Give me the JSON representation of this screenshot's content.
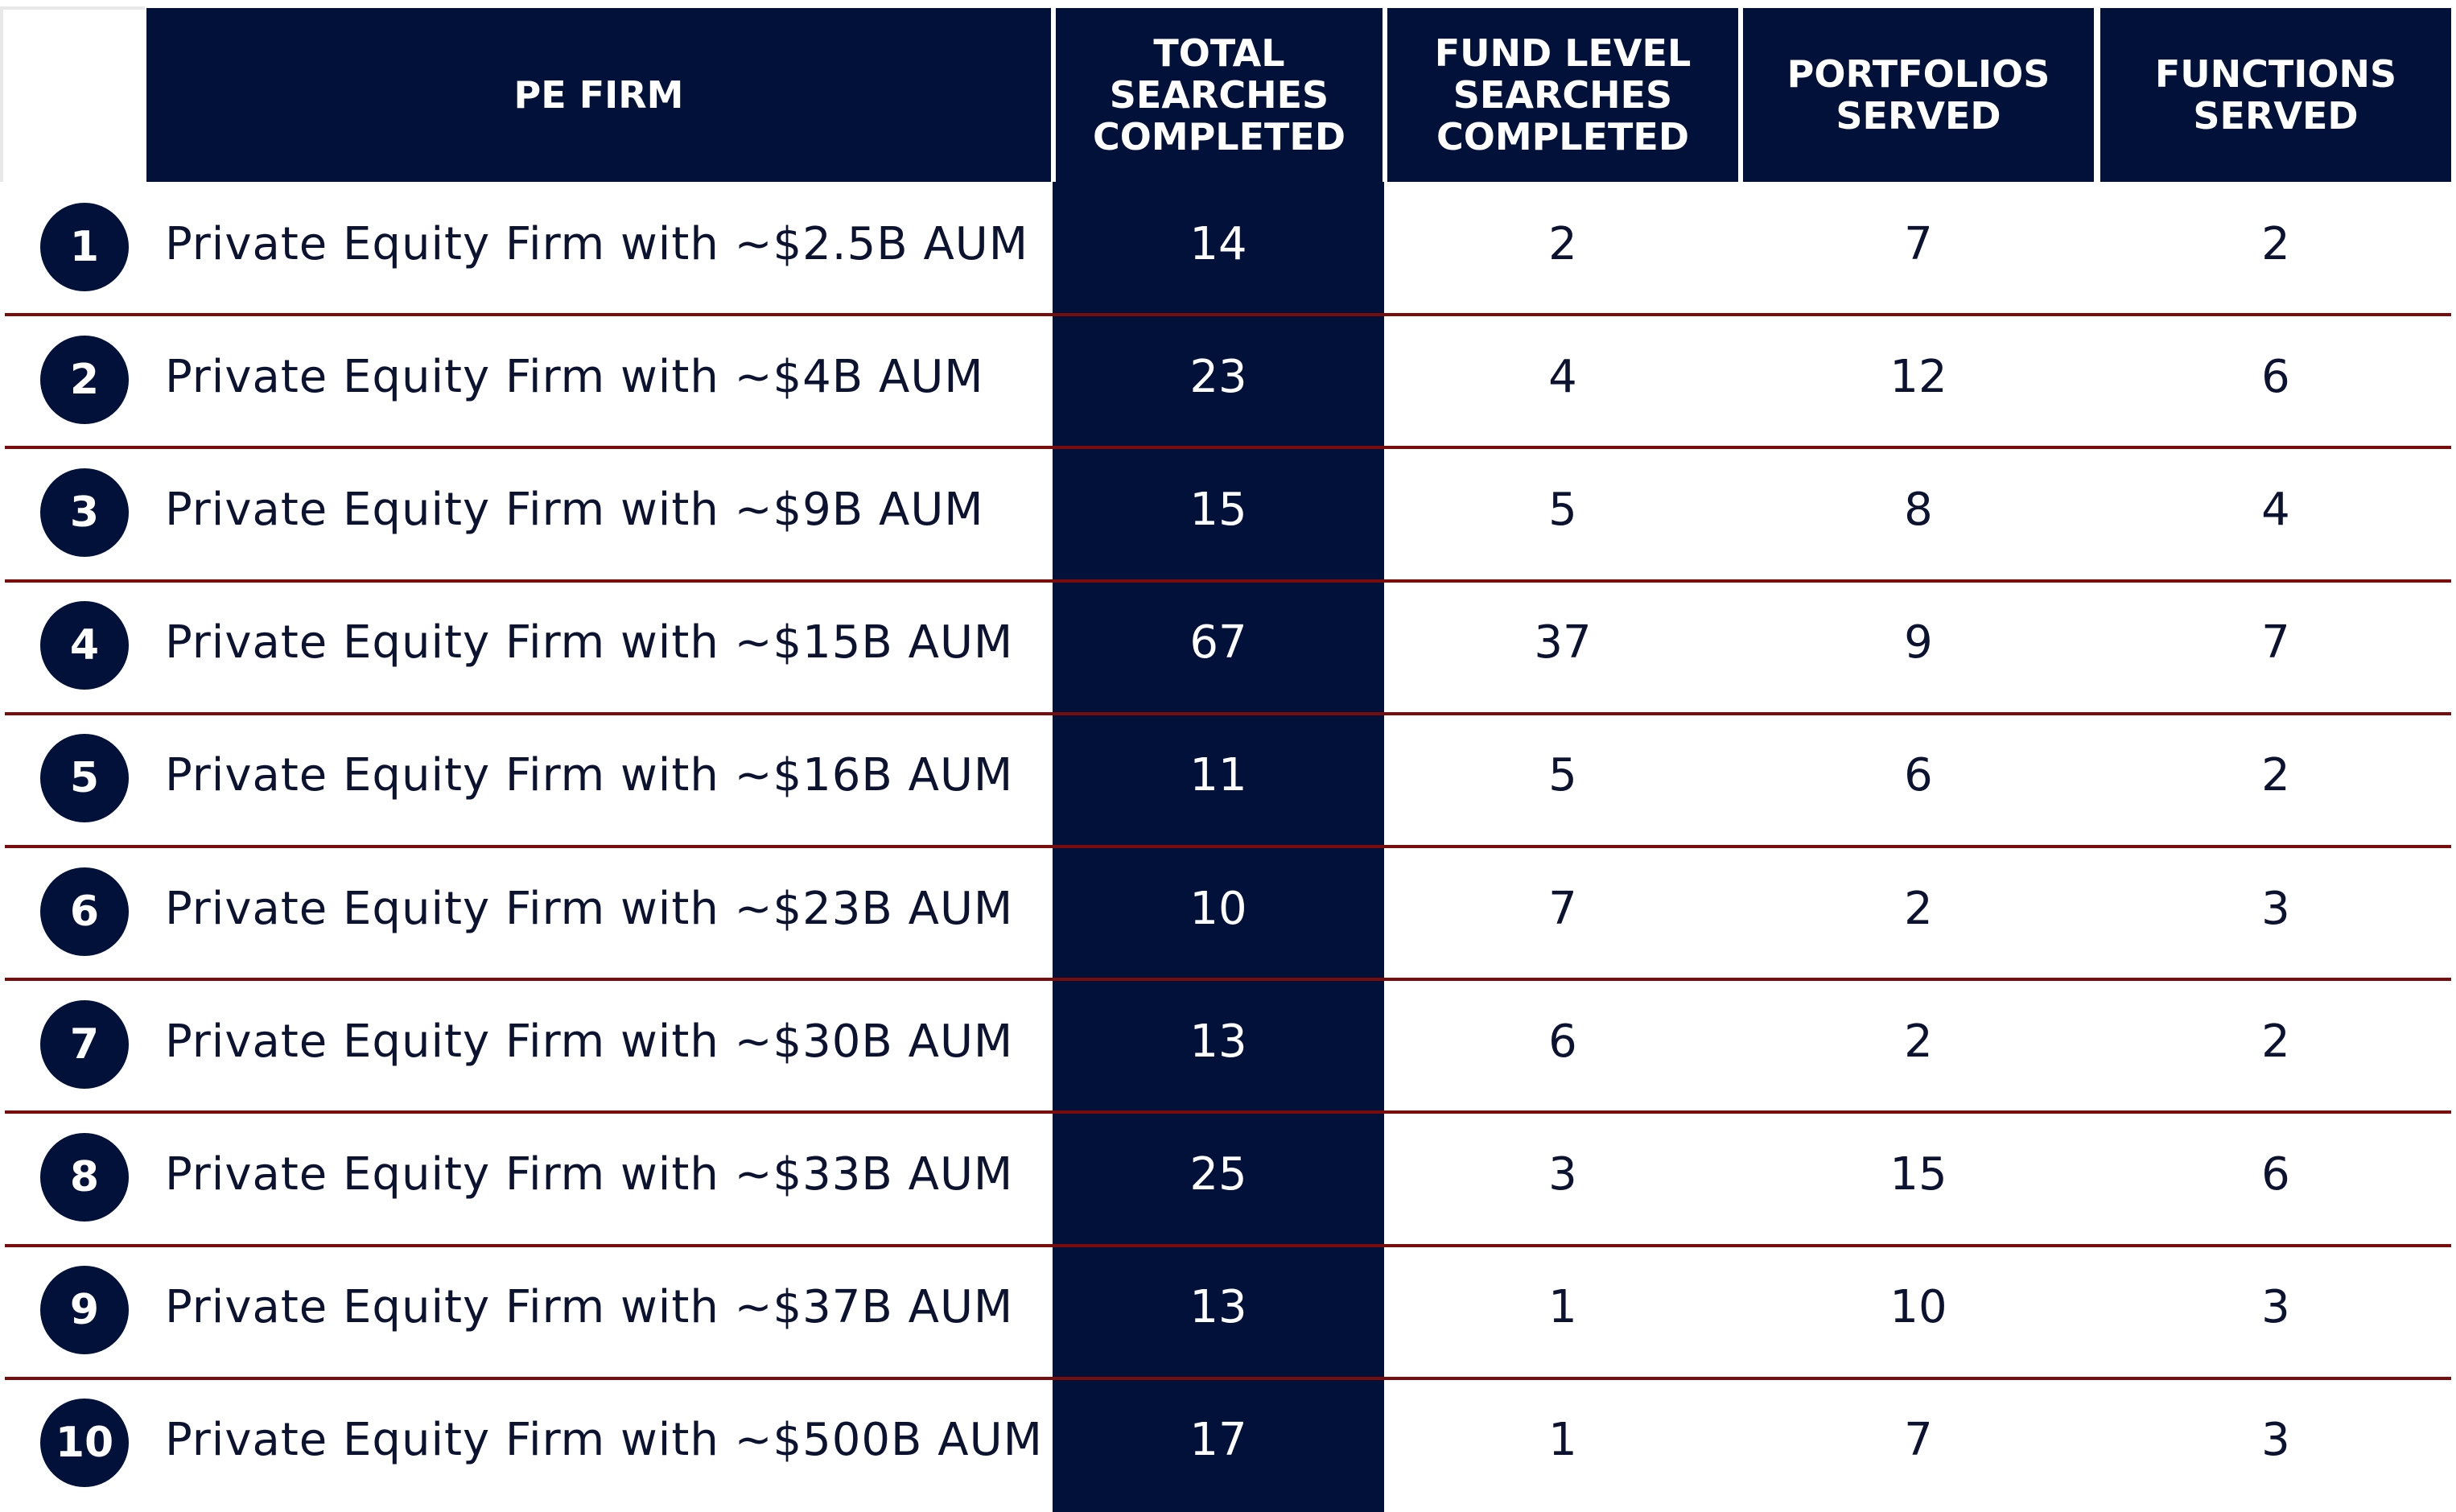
{
  "headers": {
    "firm": "PE FIRM",
    "total": "TOTAL\nSEARCHES\nCOMPLETED",
    "fund": "FUND LEVEL\nSEARCHES\nCOMPLETED",
    "portfolios": "PORTFOLIOS\nSERVED",
    "functions": "FUNCTIONS\nSERVED"
  },
  "colors": {
    "navy": "#02113a",
    "separator": "#7a0c0c"
  },
  "rows": [
    {
      "rank": "1",
      "firm": "Private Equity Firm with ~$2.5B AUM",
      "total": "14",
      "fund": "2",
      "portfolios": "7",
      "functions": "2"
    },
    {
      "rank": "2",
      "firm": "Private Equity Firm with ~$4B AUM",
      "total": "23",
      "fund": "4",
      "portfolios": "12",
      "functions": "6"
    },
    {
      "rank": "3",
      "firm": "Private Equity Firm with ~$9B AUM",
      "total": "15",
      "fund": "5",
      "portfolios": "8",
      "functions": "4"
    },
    {
      "rank": "4",
      "firm": "Private Equity Firm with ~$15B AUM",
      "total": "67",
      "fund": "37",
      "portfolios": "9",
      "functions": "7"
    },
    {
      "rank": "5",
      "firm": "Private Equity Firm with ~$16B AUM",
      "total": "11",
      "fund": "5",
      "portfolios": "6",
      "functions": "2"
    },
    {
      "rank": "6",
      "firm": "Private Equity Firm with ~$23B AUM",
      "total": "10",
      "fund": "7",
      "portfolios": "2",
      "functions": "3"
    },
    {
      "rank": "7",
      "firm": "Private Equity Firm with ~$30B AUM",
      "total": "13",
      "fund": "6",
      "portfolios": "2",
      "functions": "2"
    },
    {
      "rank": "8",
      "firm": "Private Equity Firm with ~$33B AUM",
      "total": "25",
      "fund": "3",
      "portfolios": "15",
      "functions": "6"
    },
    {
      "rank": "9",
      "firm": "Private Equity Firm with ~$37B AUM",
      "total": "13",
      "fund": "1",
      "portfolios": "10",
      "functions": "3"
    },
    {
      "rank": "10",
      "firm": "Private Equity Firm with ~$500B AUM",
      "total": "17",
      "fund": "1",
      "portfolios": "7",
      "functions": "3"
    }
  ]
}
